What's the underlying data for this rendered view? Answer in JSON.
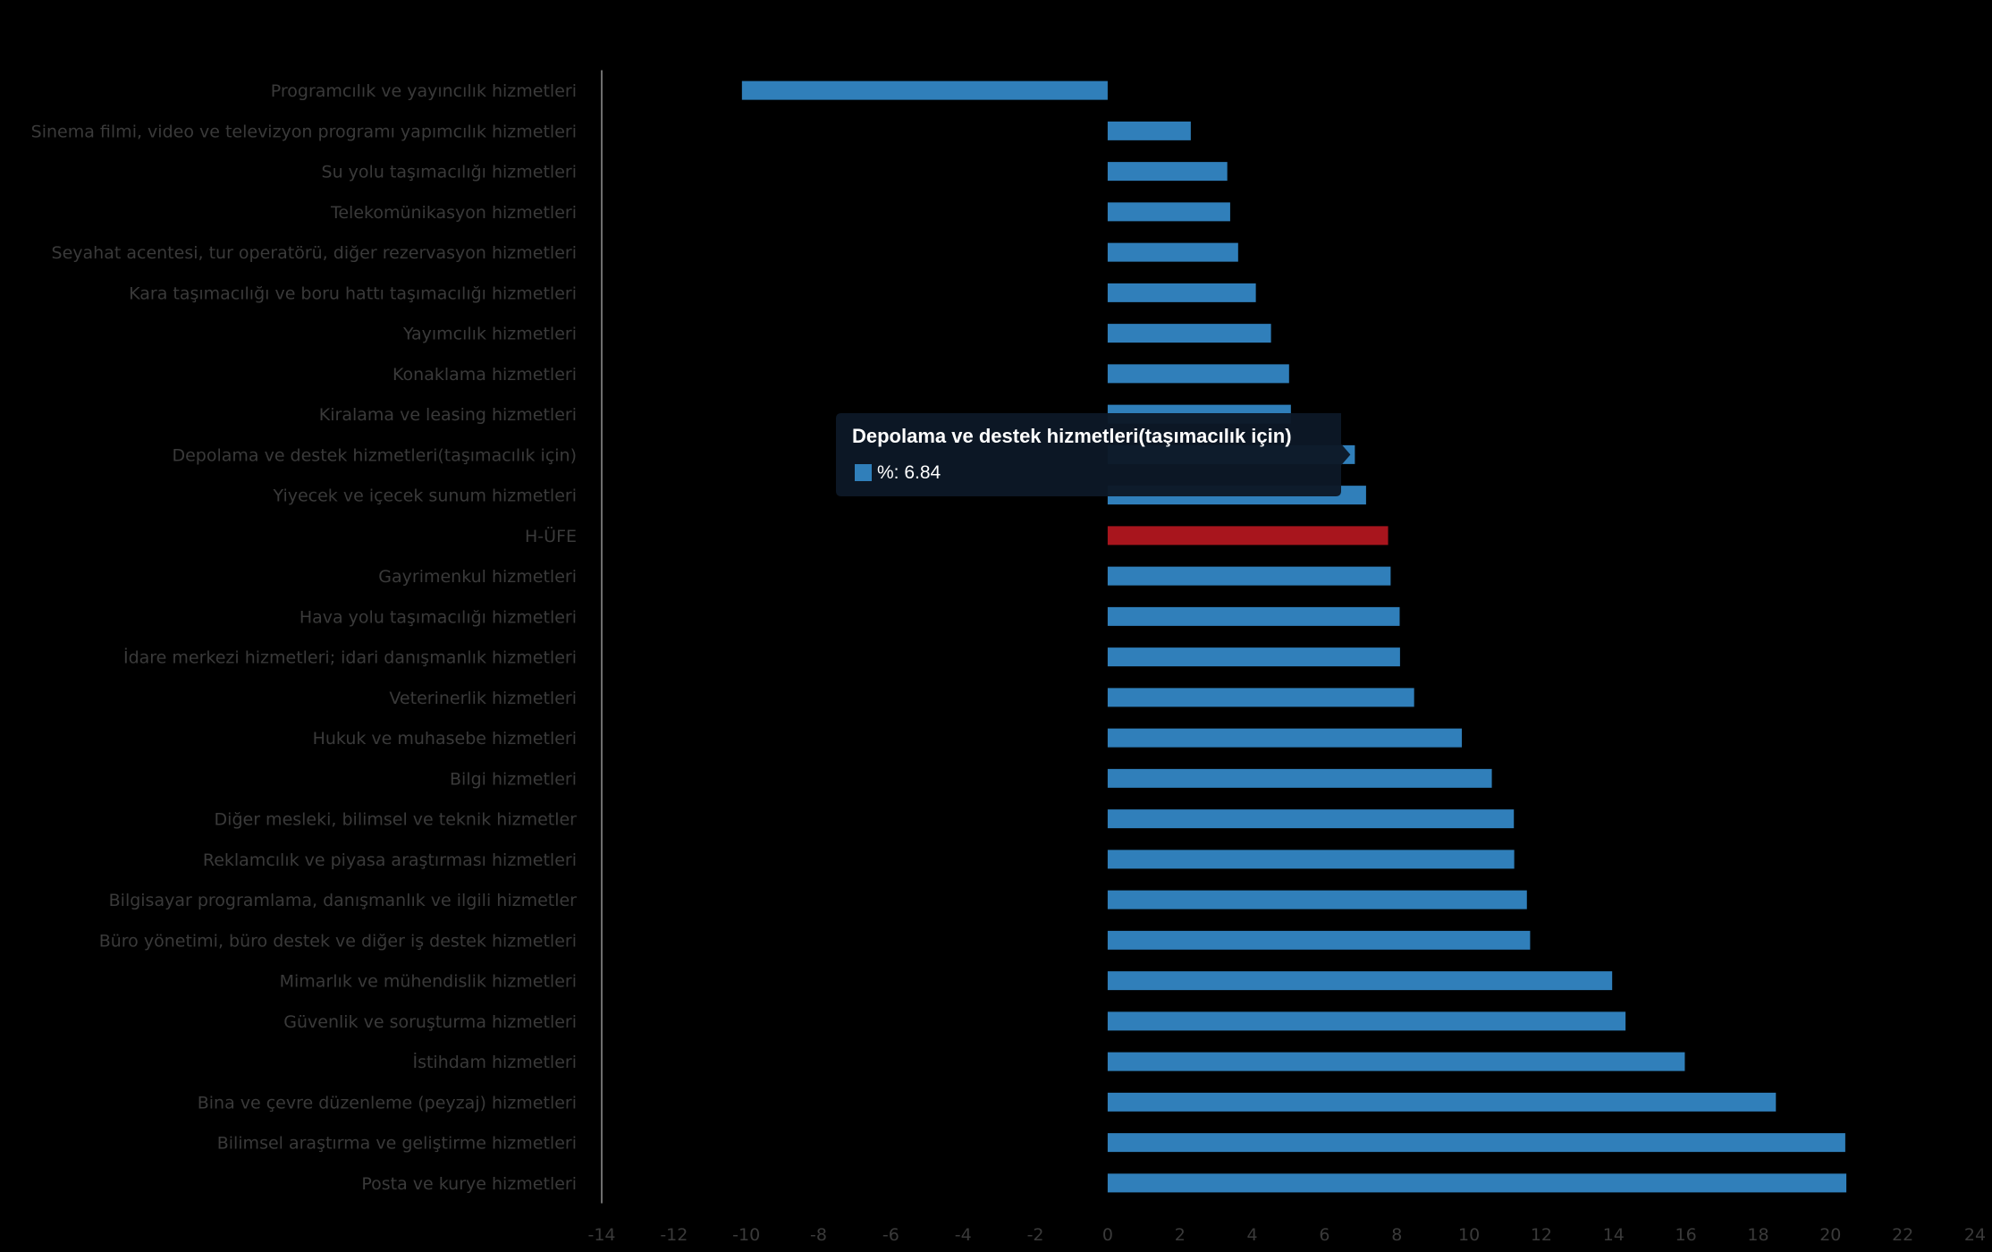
{
  "chart_data": {
    "type": "bar",
    "orientation": "horizontal",
    "title": "",
    "xlabel": "",
    "ylabel": "",
    "xlim": [
      -14,
      24
    ],
    "x_ticks": [
      -14,
      -12,
      -10,
      -8,
      -6,
      -4,
      -2,
      0,
      2,
      4,
      6,
      8,
      10,
      12,
      14,
      16,
      18,
      20,
      22,
      24
    ],
    "grid": false,
    "legend": "none",
    "series_name": "%",
    "colors": {
      "default": "#307fba",
      "highlight": "#a8151d"
    },
    "highlight_category": "H-ÜFE",
    "categories": [
      "Programcılık ve yayıncılık hizmetleri",
      "Sinema filmi, video ve televizyon programı yapımcılık hizmetleri",
      "Su yolu taşımacılığı hizmetleri",
      "Telekomünikasyon hizmetleri",
      "Seyahat acentesi, tur operatörü, diğer rezervasyon hizmetleri",
      "Kara taşımacılığı ve boru hattı taşımacılığı hizmetleri",
      "Yayımcılık hizmetleri",
      "Konaklama hizmetleri",
      "Kiralama ve leasing hizmetleri",
      "Depolama ve destek hizmetleri(taşımacılık için)",
      "Yiyecek ve içecek sunum hizmetleri",
      "H-ÜFE",
      "Gayrimenkul hizmetleri",
      "Hava yolu taşımacılığı hizmetleri",
      "İdare merkezi hizmetleri; idari danışmanlık hizmetleri",
      "Veterinerlik hizmetleri",
      "Hukuk ve muhasebe hizmetleri",
      "Bilgi hizmetleri",
      "Diğer mesleki, bilimsel ve teknik hizmetler",
      "Reklamcılık ve piyasa araştırması hizmetleri",
      "Bilgisayar programlama, danışmanlık ve ilgili hizmetler",
      "Büro yönetimi, büro destek ve diğer iş destek hizmetleri",
      "Mimarlık ve mühendislik hizmetleri",
      "Güvenlik ve soruşturma hizmetleri",
      "İstihdam hizmetleri",
      "Bina ve çevre düzenleme (peyzaj) hizmetleri",
      "Bilimsel araştırma ve geliştirme hizmetleri",
      "Posta ve kurye hizmetleri"
    ],
    "values": [
      -10.12,
      2.3,
      3.31,
      3.39,
      3.61,
      4.1,
      4.52,
      5.02,
      5.07,
      6.84,
      7.15,
      7.76,
      7.83,
      8.08,
      8.09,
      8.48,
      9.8,
      10.63,
      11.24,
      11.25,
      11.6,
      11.69,
      13.96,
      14.33,
      15.97,
      18.49,
      20.41,
      20.44
    ]
  },
  "tooltip": {
    "visible": true,
    "category": "Depolama ve destek hizmetleri(taşımacılık için)",
    "title": "Depolama ve destek hizmetleri(taşımacılık için)",
    "value_text": "%: 6.84",
    "marker_color": "#307fba"
  }
}
